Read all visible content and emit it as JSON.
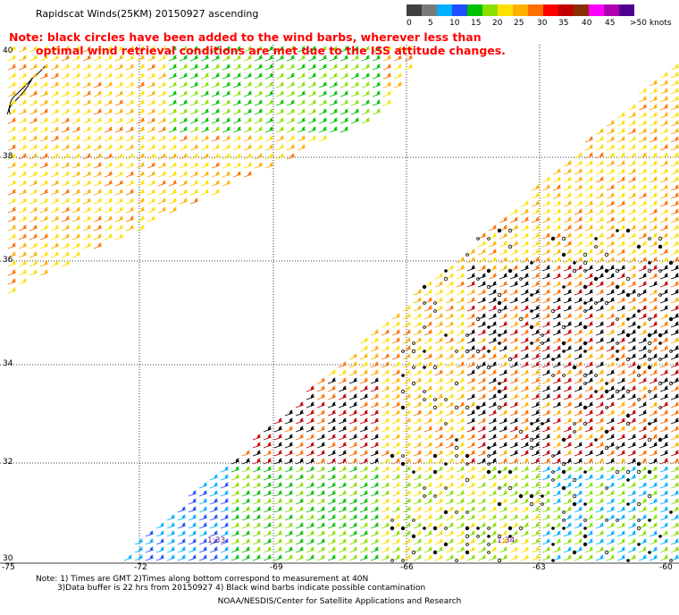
{
  "title": "Rapidscat Winds(25KM) 20150927 ascending",
  "note": {
    "line1": "Note: black circles have been added to the wind barbs, wherever less than",
    "line2": "optimal wind retrieval conditions are met due to the ISS attitude changes."
  },
  "legend": {
    "colors": [
      "#404040",
      "#7a7a7a",
      "#00b0ff",
      "#1f4fff",
      "#00c000",
      "#8ae000",
      "#ffe000",
      "#ffb000",
      "#ff7000",
      "#ff0000",
      "#c00000",
      "#8a3000",
      "#ff00ff",
      "#b000b0",
      "#500090"
    ],
    "labels": [
      "0",
      "5",
      "10",
      "15",
      "20",
      "25",
      "30",
      "35",
      "40",
      "45",
      ">50 knots"
    ]
  },
  "lat_labels": [
    "40",
    "38",
    "36",
    "34",
    "32",
    "30"
  ],
  "lon_labels": [
    "-75",
    "-72",
    "-69",
    "-66",
    "-63",
    "-60"
  ],
  "time_labels": [
    "1:33",
    "1:34"
  ],
  "footer": {
    "line1": "Note: 1) Times are GMT 2)Times along bottom correspond to measurement at 40N",
    "line2": "3)Data buffer is 22 hrs from 20150927 4) Black wind barbs indicate possible contamination",
    "line3": "NOAA/NESDIS/Center for Satellite Applications and Research"
  }
}
